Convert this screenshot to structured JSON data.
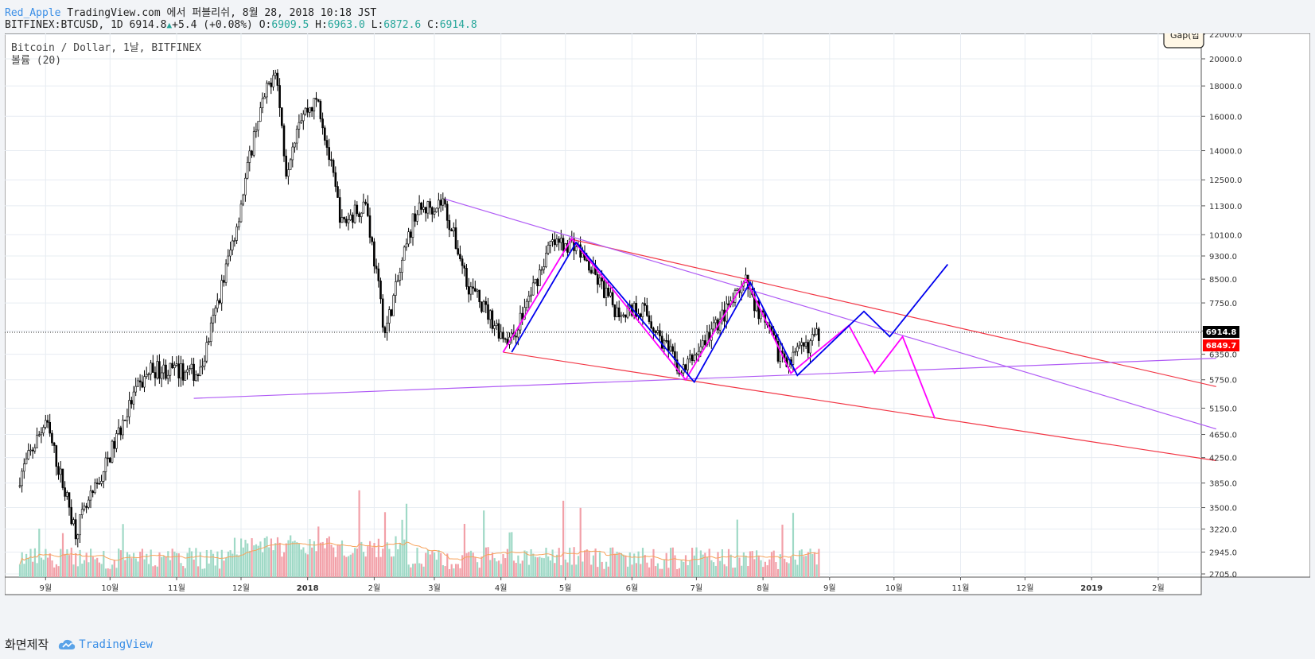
{
  "header": {
    "author": "Red_Apple",
    "publish_text": "TradingView.com 에서 퍼블리쉬, 8월 28, 2018 10:18 JST",
    "symbol": "BITFINEX:BTCUSD,",
    "interval": "1D",
    "last": "6914.8",
    "change": "+5.4 (+0.08%)",
    "o_label": "O:",
    "o_val": "6909.5",
    "h_label": "H:",
    "h_val": "6963.0",
    "l_label": "L:",
    "l_val": "6872.6",
    "c_label": "C:",
    "c_val": "6914.8"
  },
  "legend": {
    "title": "Bitcoin / Dollar, 1날, BITFINEX",
    "indicator": "볼륨 (20)",
    "gap_badge": "Gap(입"
  },
  "footer": {
    "made_with": "화면제작",
    "brand": "TradingView"
  },
  "colors": {
    "up": "#26a69a",
    "down": "#000000",
    "vol_up": "#9fd9c6",
    "vol_down": "#f2a0a8",
    "vol_ma": "#f7a35c",
    "channel_red": "#f23645",
    "trend_purple": "#b05cf5",
    "zigzag_magenta": "#ff00ff",
    "zigzag_blue": "#0000ee",
    "last_price_bg": "#000000",
    "ref_price_bg": "#ff0000"
  },
  "chart_data": {
    "type": "candlestick",
    "scale": "log",
    "title": "Bitcoin / Dollar, 1날, BITFINEX",
    "y_ticks": [
      "22000.0",
      "20000.0",
      "18000.0",
      "16000.0",
      "14000.0",
      "12500.0",
      "11300.0",
      "10100.0",
      "9300.0",
      "8500.0",
      "7750.0",
      "6950.0",
      "6350.0",
      "5750.0",
      "5150.0",
      "4650.0",
      "4250.0",
      "3850.0",
      "3500.0",
      "3220.0",
      "2945.0",
      "2705.0"
    ],
    "x_ticks": [
      "9월",
      "10월",
      "11월",
      "12월",
      "2018",
      "2월",
      "3월",
      "4월",
      "5월",
      "6월",
      "7월",
      "8월",
      "9월",
      "10월",
      "11월",
      "12월",
      "2019",
      "2월"
    ],
    "last_price": "6914.8",
    "ref_price": "6849.7",
    "price_path": [
      [
        "2017-08-20",
        3950
      ],
      [
        "2017-09-01",
        4900
      ],
      [
        "2017-09-15",
        3200
      ],
      [
        "2017-09-25",
        3800
      ],
      [
        "2017-10-12",
        5400
      ],
      [
        "2017-10-20",
        6000
      ],
      [
        "2017-11-12",
        5900
      ],
      [
        "2017-11-29",
        10500
      ],
      [
        "2017-12-08",
        15500
      ],
      [
        "2017-12-17",
        19500
      ],
      [
        "2017-12-22",
        13000
      ],
      [
        "2017-12-28",
        16000
      ],
      [
        "2018-01-06",
        17000
      ],
      [
        "2018-01-17",
        10500
      ],
      [
        "2018-01-28",
        11500
      ],
      [
        "2018-02-06",
        6900
      ],
      [
        "2018-02-20",
        11000
      ],
      [
        "2018-03-05",
        11500
      ],
      [
        "2018-03-17",
        8300
      ],
      [
        "2018-04-01",
        6900
      ],
      [
        "2018-04-06",
        6700
      ],
      [
        "2018-04-24",
        9700
      ],
      [
        "2018-05-05",
        9800
      ],
      [
        "2018-05-25",
        7500
      ],
      [
        "2018-06-06",
        7600
      ],
      [
        "2018-06-24",
        5900
      ],
      [
        "2018-07-01",
        6400
      ],
      [
        "2018-07-24",
        8350
      ],
      [
        "2018-08-08",
        6400
      ],
      [
        "2018-08-14",
        6200
      ],
      [
        "2018-08-28",
        6914.8
      ]
    ],
    "volume_ma_period": 20,
    "annotations": [
      {
        "type": "channel-upper",
        "color": "red",
        "from": [
          "2018-05-05",
          9900
        ],
        "to": [
          "2019-02-28",
          5600
        ]
      },
      {
        "type": "channel-lower",
        "color": "red",
        "from": [
          "2018-04-02",
          6400
        ],
        "to": [
          "2019-02-28",
          4200
        ]
      },
      {
        "type": "trendline",
        "color": "purple",
        "from": [
          "2018-03-06",
          11600
        ],
        "to": [
          "2019-02-28",
          4750
        ]
      },
      {
        "type": "trendline",
        "color": "purple",
        "from": [
          "2017-11-09",
          5350
        ],
        "to": [
          "2019-02-28",
          6250
        ]
      },
      {
        "type": "zigzag",
        "color": "magenta",
        "points": [
          [
            "2018-04-02",
            6400
          ],
          [
            "2018-05-04",
            9950
          ],
          [
            "2018-06-26",
            5750
          ],
          [
            "2018-07-24",
            8500
          ],
          [
            "2018-08-14",
            5900
          ],
          [
            "2018-09-10",
            7100
          ],
          [
            "2018-09-22",
            5900
          ],
          [
            "2018-10-05",
            6800
          ],
          [
            "2018-10-20",
            4950
          ]
        ]
      },
      {
        "type": "zigzag",
        "color": "blue",
        "points": [
          [
            "2018-04-06",
            6400
          ],
          [
            "2018-05-06",
            9800
          ],
          [
            "2018-06-30",
            5700
          ],
          [
            "2018-07-26",
            8400
          ],
          [
            "2018-08-17",
            5850
          ],
          [
            "2018-09-17",
            7500
          ],
          [
            "2018-09-29",
            6800
          ],
          [
            "2018-10-26",
            9000
          ]
        ]
      }
    ]
  }
}
